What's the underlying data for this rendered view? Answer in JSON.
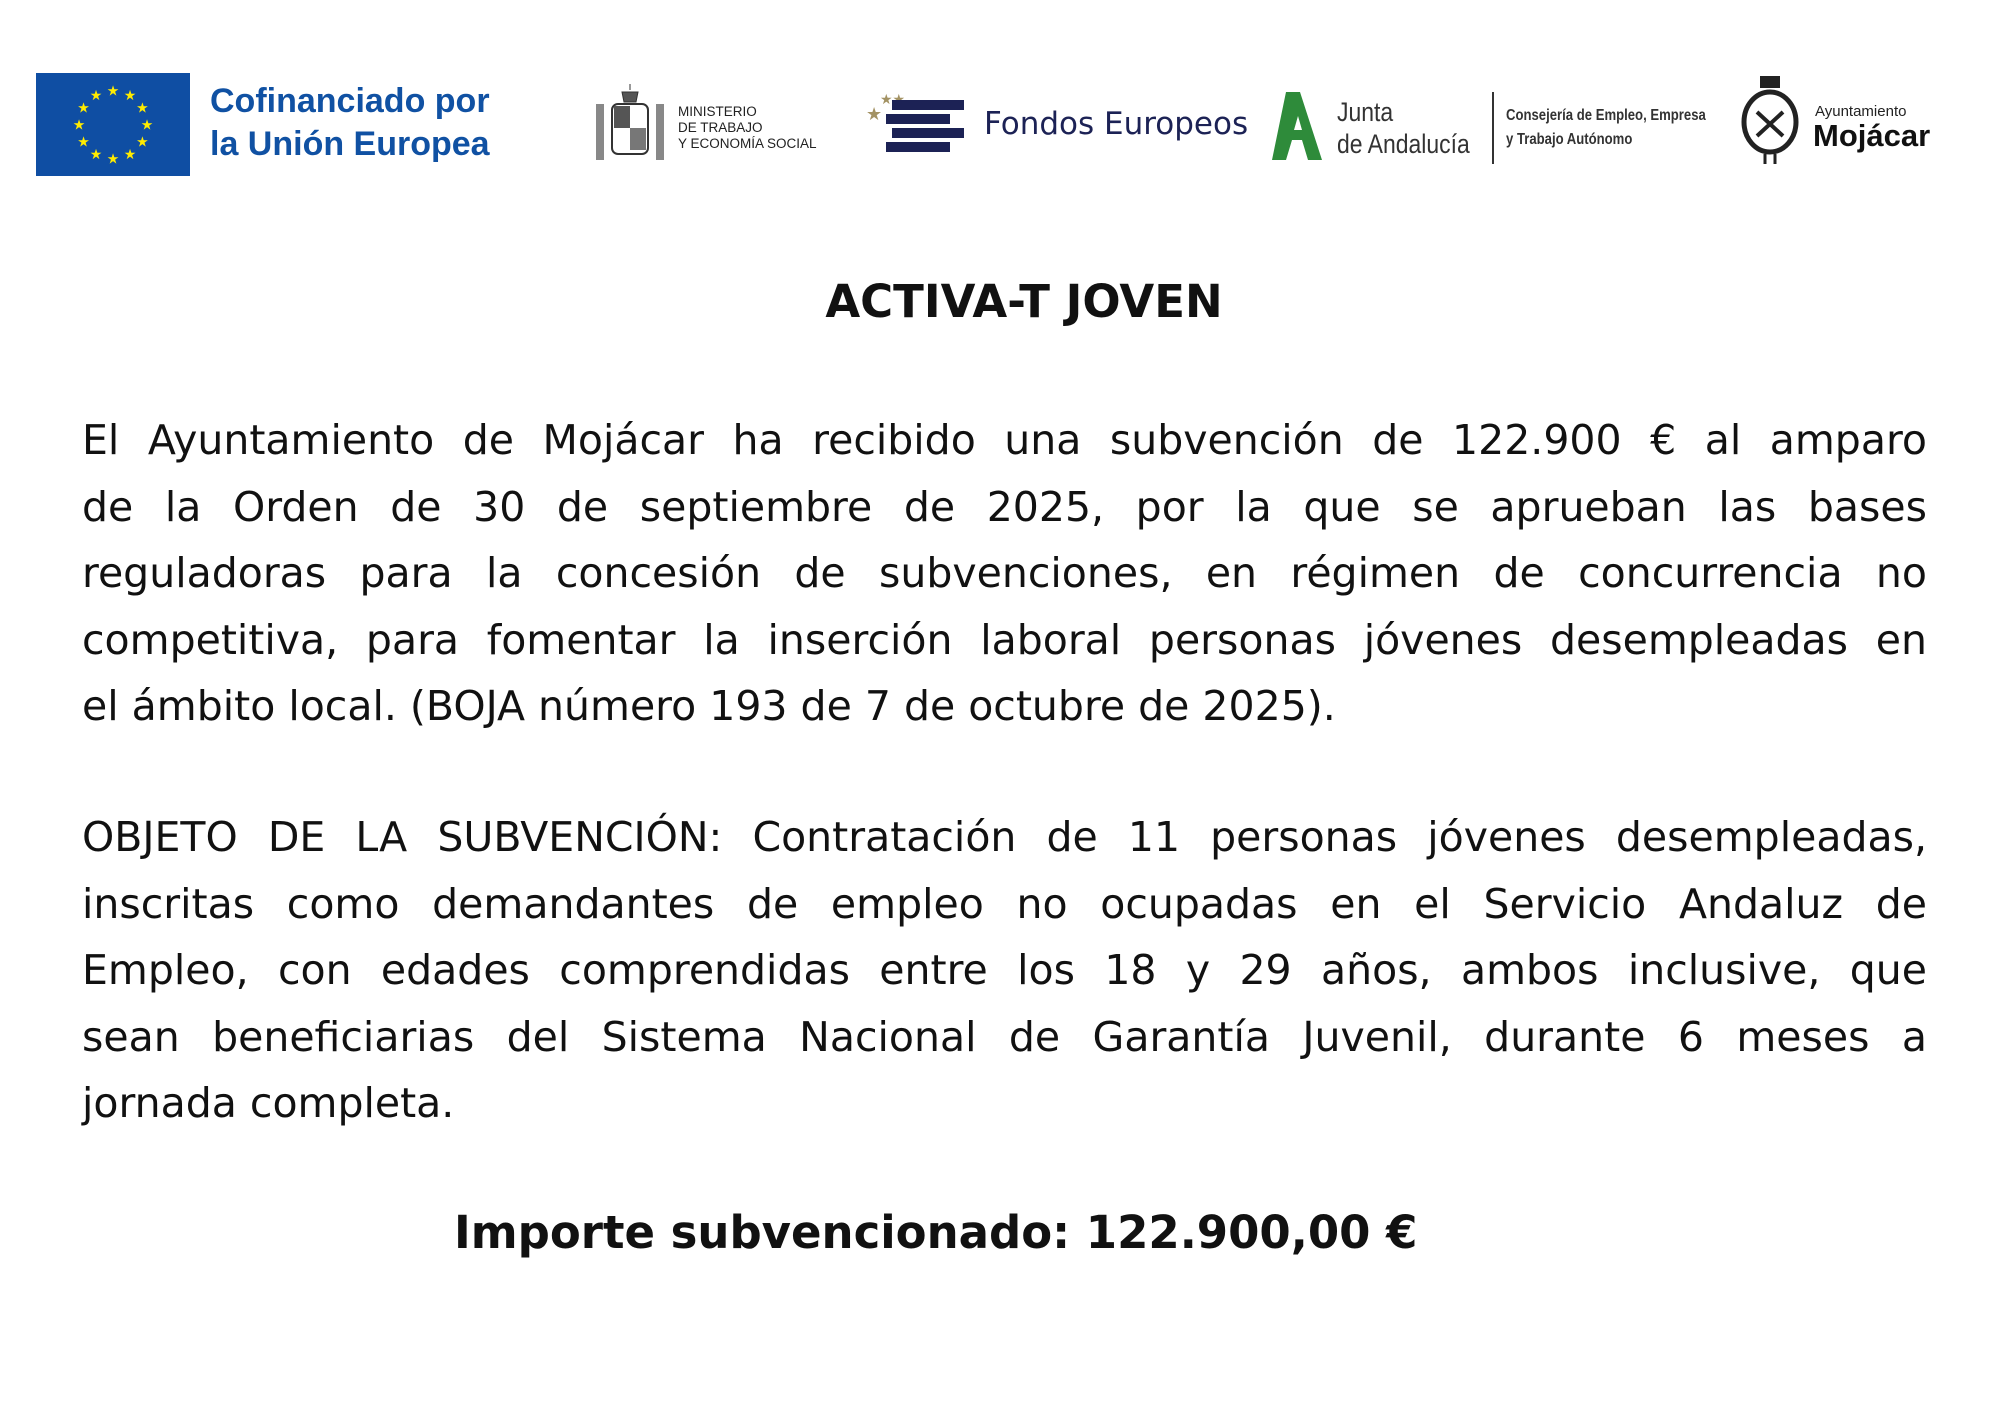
{
  "logos": {
    "eu": {
      "line1": "Cofinanciado por",
      "line2": "la Unión Europea"
    },
    "ministerio": {
      "line1": "MINISTERIO",
      "line2": "DE TRABAJO",
      "line3": "Y ECONOMÍA SOCIAL"
    },
    "fondos": {
      "text": "Fondos Europeos"
    },
    "junta": {
      "line1": "Junta",
      "line2": "de Andalucía"
    },
    "consejeria": {
      "line1": "Consejería de Empleo, Empresa",
      "line2": "y Trabajo Autónomo"
    },
    "mojacar": {
      "small": "Ayuntamiento",
      "big": "Mojácar"
    }
  },
  "colors": {
    "eu_blue": "#0f4ea3",
    "eu_star": "#ffec00",
    "junta_green": "#2e8b3a",
    "fondos_navy": "#1c2255"
  },
  "document": {
    "title": "ACTIVA-T JOVEN",
    "paragraph1": [
      "El Ayuntamiento de Mojácar ha recibido una subvención de 122.900 € al amparo",
      "de la Orden de 30 de septiembre de 2025, por la que se aprueban las bases",
      "reguladoras para la concesión de subvenciones, en régimen de concurrencia no",
      "competitiva, para fomentar la inserción laboral personas jóvenes desempleadas en",
      "el ámbito local. (BOJA número 193 de 7 de octubre de 2025)."
    ],
    "paragraph2": [
      "OBJETO DE LA SUBVENCIÓN: Contratación de 11 personas jóvenes desempleadas,",
      "inscritas como demandantes de empleo no ocupadas en el Servicio Andaluz de",
      "Empleo, con edades comprendidas entre los 18 y 29 años, ambos inclusive, que",
      "sean beneficiarias del Sistema Nacional de Garantía Juvenil, durante 6 meses a",
      "jornada completa."
    ],
    "importe": "Importe subvencionado: 122.900,00 €"
  }
}
